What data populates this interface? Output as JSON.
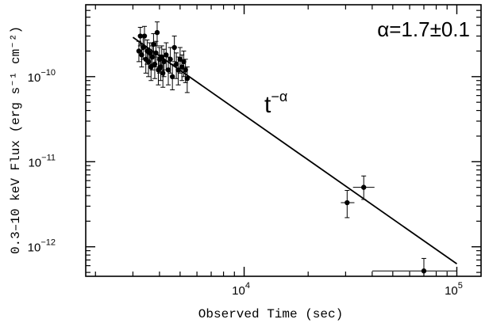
{
  "chart_data": {
    "type": "scatter",
    "title": "",
    "xlabel": "Observed Time (sec)",
    "ylabel": "0.3–10 keV Flux (erg s⁻¹ cm⁻²)",
    "x_scale": "log",
    "y_scale": "log",
    "xlim": [
      1800,
      130000
    ],
    "ylim": [
      4.5e-13,
      7e-10
    ],
    "x_ticks": [
      {
        "value": 10000,
        "base": "10",
        "exp": "4"
      },
      {
        "value": 100000,
        "base": "10",
        "exp": "5"
      }
    ],
    "y_ticks": [
      {
        "value": 1e-10,
        "base": "10",
        "exp": "−10"
      },
      {
        "value": 1e-11,
        "base": "10",
        "exp": "−11"
      },
      {
        "value": 1e-12,
        "base": "10",
        "exp": "−12"
      }
    ],
    "annotations": {
      "fit_result": "α=1.7±0.1",
      "model_base": "t",
      "model_exp": "−α"
    },
    "fit_line": {
      "x": [
        3000,
        100000
      ],
      "y": [
        2.9e-10,
        6.3e-13
      ]
    },
    "series": [
      {
        "points": [
          {
            "x": 3200,
            "y": 2e-10,
            "ylo": 1.5e-10,
            "yhi": 2.6e-10
          },
          {
            "x": 3250,
            "y": 3e-10,
            "ylo": 2.3e-10,
            "yhi": 3.8e-10
          },
          {
            "x": 3300,
            "y": 1.8e-10,
            "ylo": 1.3e-10,
            "yhi": 2.4e-10
          },
          {
            "x": 3350,
            "y": 2.2e-10,
            "ylo": 1.6e-10,
            "yhi": 2.9e-10
          },
          {
            "x": 3400,
            "y": 3e-10,
            "ylo": 2.2e-10,
            "yhi": 3.9e-10
          },
          {
            "x": 3450,
            "y": 1.6e-10,
            "ylo": 1.1e-10,
            "yhi": 2.2e-10
          },
          {
            "x": 3500,
            "y": 2e-10,
            "ylo": 1.4e-10,
            "yhi": 2.7e-10
          },
          {
            "x": 3550,
            "y": 1.5e-10,
            "ylo": 1e-10,
            "yhi": 2.1e-10
          },
          {
            "x": 3600,
            "y": 1.9e-10,
            "ylo": 1.4e-10,
            "yhi": 2.5e-10
          },
          {
            "x": 3650,
            "y": 1.3e-10,
            "ylo": 9e-11,
            "yhi": 1.8e-10
          },
          {
            "x": 3700,
            "y": 1.7e-10,
            "ylo": 1.2e-10,
            "yhi": 2.3e-10
          },
          {
            "x": 3750,
            "y": 2.4e-10,
            "ylo": 1.7e-10,
            "yhi": 3.2e-10
          },
          {
            "x": 3800,
            "y": 1.4e-10,
            "ylo": 9.5e-11,
            "yhi": 1.9e-10
          },
          {
            "x": 3850,
            "y": 1.9e-10,
            "ylo": 1.3e-10,
            "yhi": 2.6e-10
          },
          {
            "x": 3900,
            "y": 3.3e-10,
            "ylo": 2.3e-10,
            "yhi": 4.4e-10
          },
          {
            "x": 3950,
            "y": 1.2e-10,
            "ylo": 8e-11,
            "yhi": 1.7e-10
          },
          {
            "x": 4000,
            "y": 1.6e-10,
            "ylo": 1.1e-10,
            "yhi": 2.2e-10
          },
          {
            "x": 4050,
            "y": 1.3e-10,
            "ylo": 9e-11,
            "yhi": 1.8e-10
          },
          {
            "x": 4100,
            "y": 1.7e-10,
            "ylo": 1.2e-10,
            "yhi": 2.3e-10
          },
          {
            "x": 4150,
            "y": 1.1e-10,
            "ylo": 7.5e-11,
            "yhi": 1.6e-10
          },
          {
            "x": 4200,
            "y": 1.5e-10,
            "ylo": 1e-10,
            "yhi": 2.1e-10
          },
          {
            "x": 4300,
            "y": 1.8e-10,
            "ylo": 1.2e-10,
            "yhi": 2.5e-10
          },
          {
            "x": 4400,
            "y": 1.2e-10,
            "ylo": 8e-11,
            "yhi": 1.7e-10
          },
          {
            "x": 4500,
            "y": 1.6e-10,
            "ylo": 1.1e-10,
            "yhi": 2.2e-10
          },
          {
            "x": 4600,
            "y": 1e-10,
            "ylo": 7e-11,
            "yhi": 1.4e-10
          },
          {
            "x": 4700,
            "y": 2.2e-10,
            "ylo": 1.5e-10,
            "yhi": 3e-10
          },
          {
            "x": 4800,
            "y": 1.4e-10,
            "ylo": 9.5e-11,
            "yhi": 1.9e-10
          },
          {
            "x": 4900,
            "y": 1.2e-10,
            "ylo": 8e-11,
            "yhi": 1.7e-10
          },
          {
            "x": 5000,
            "y": 1.6e-10,
            "ylo": 1.1e-10,
            "yhi": 2.2e-10
          },
          {
            "x": 5100,
            "y": 1.3e-10,
            "ylo": 9e-11,
            "yhi": 1.8e-10
          },
          {
            "x": 5200,
            "y": 1.5e-10,
            "ylo": 1e-10,
            "yhi": 2e-10
          },
          {
            "x": 5300,
            "y": 1.2e-10,
            "ylo": 8.5e-11,
            "yhi": 1.6e-10
          },
          {
            "x": 5400,
            "y": 9.5e-11,
            "ylo": 6.5e-11,
            "yhi": 1.3e-10
          },
          {
            "x": 30500,
            "y": 3.3e-12,
            "ylo": 2.2e-12,
            "yhi": 4.6e-12,
            "xlo": 28500,
            "xhi": 33000
          },
          {
            "x": 36500,
            "y": 5e-12,
            "ylo": 3.6e-12,
            "yhi": 6.8e-12,
            "xlo": 32500,
            "xhi": 41000
          },
          {
            "x": 70000,
            "y": 5.2e-13,
            "ylo": 4.5e-13,
            "yhi": 7.3e-13,
            "xlo": 40000,
            "xhi": 100000
          }
        ]
      }
    ]
  }
}
